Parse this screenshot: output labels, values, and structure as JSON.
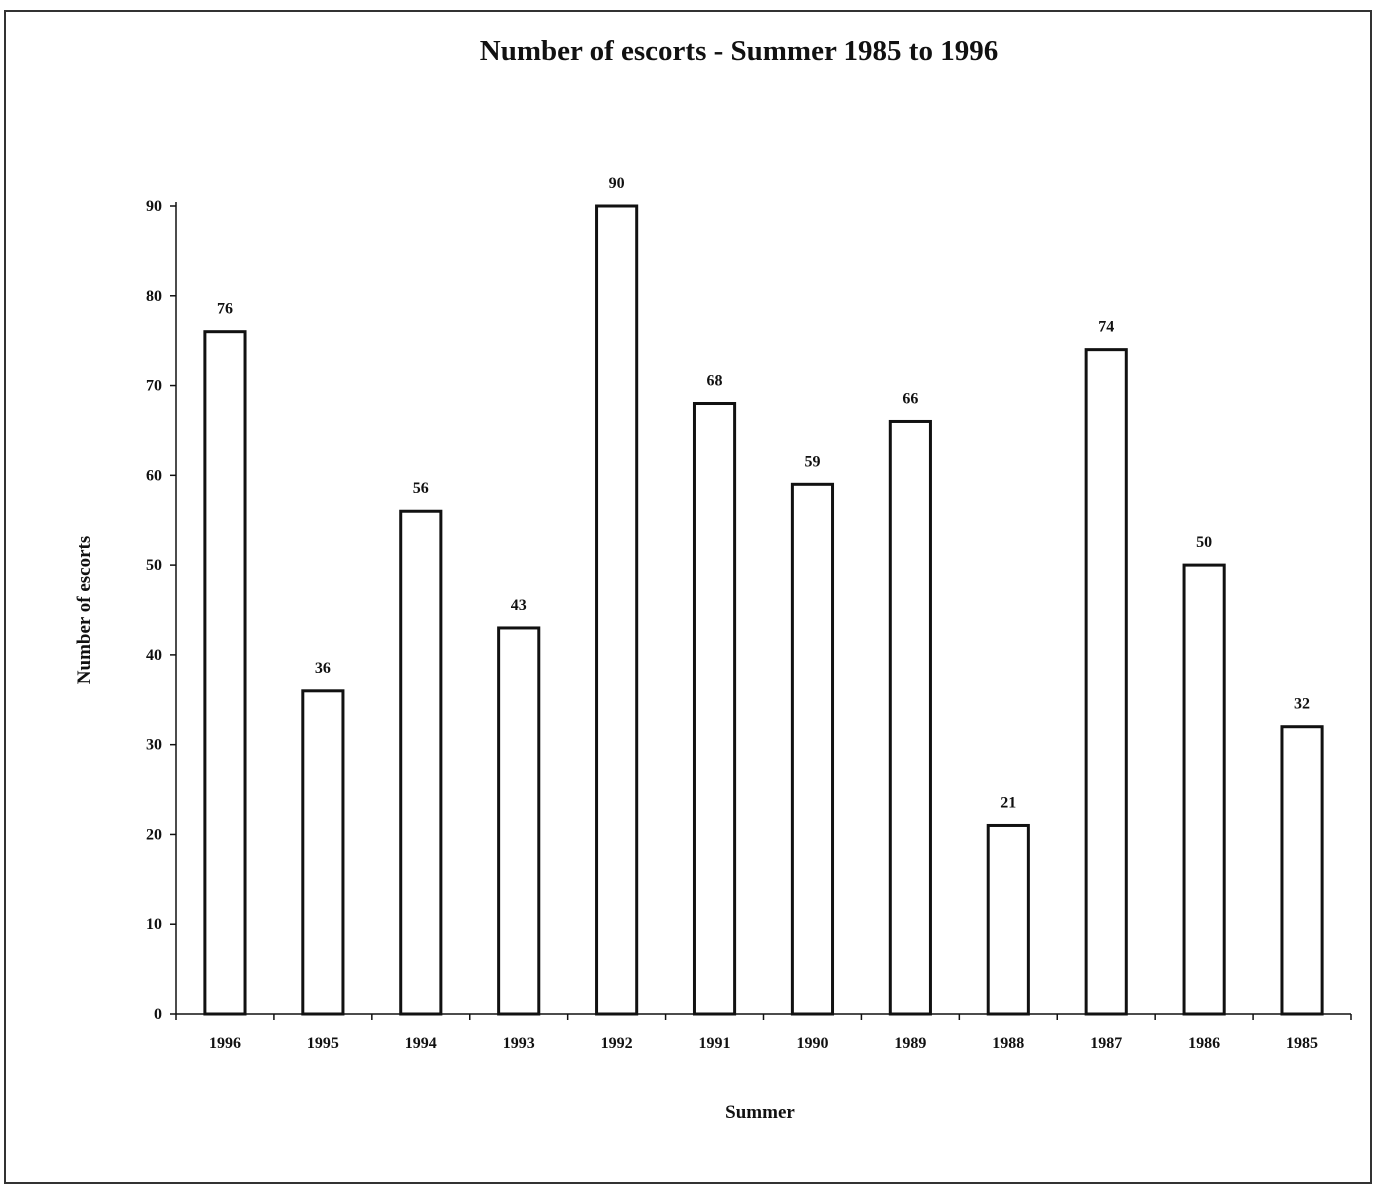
{
  "chart_data": {
    "type": "bar",
    "title": "Number of escorts - Summer 1985 to 1996",
    "xlabel": "Summer",
    "ylabel": "Number of escorts",
    "categories": [
      "1996",
      "1995",
      "1994",
      "1993",
      "1992",
      "1991",
      "1990",
      "1989",
      "1988",
      "1987",
      "1986",
      "1985"
    ],
    "values": [
      76,
      36,
      56,
      43,
      90,
      68,
      59,
      66,
      21,
      74,
      50,
      32
    ],
    "ylim": [
      0,
      90
    ],
    "yticks": [
      0,
      10,
      20,
      30,
      40,
      50,
      60,
      70,
      80,
      90
    ],
    "ytick_labels": [
      "0",
      "10",
      "20",
      "30",
      "40",
      "50",
      "60",
      "70",
      "80",
      "90"
    ],
    "data_labels": [
      "76",
      "36",
      "56",
      "43",
      "90",
      "68",
      "59",
      "66",
      "21",
      "74",
      "50",
      "32"
    ],
    "grid": false,
    "legend": "none",
    "colors": {
      "bar_fill": "#ffffff",
      "bar_stroke": "#111111"
    }
  }
}
